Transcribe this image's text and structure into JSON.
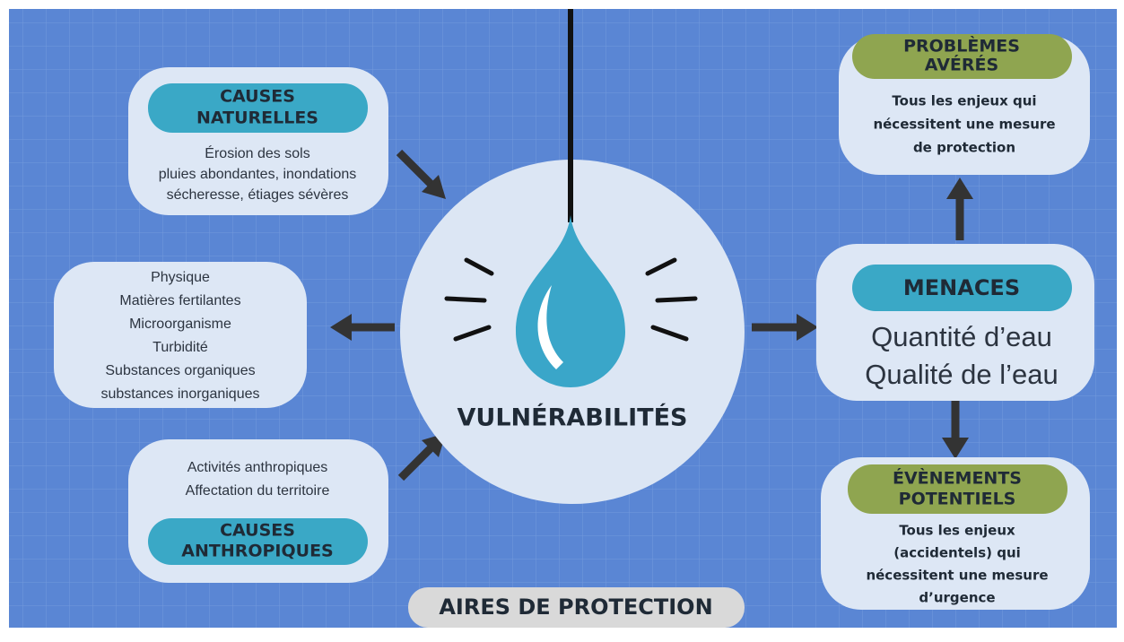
{
  "causes_naturelles": {
    "title": [
      "CAUSES",
      "NATURELLES"
    ],
    "lines": [
      "Érosion des sols",
      "pluies abondantes, inondations",
      "sécheresse, étiages sévères"
    ]
  },
  "parametres": {
    "lines": [
      "Physique",
      "Matières fertilantes",
      "Microorganisme",
      "Turbidité",
      "Substances organiques",
      "substances inorganiques"
    ]
  },
  "causes_anthropiques": {
    "title": [
      "CAUSES",
      "ANTHROPIQUES"
    ],
    "lines": [
      "Activités anthropiques",
      "Affectation du territoire"
    ]
  },
  "center": {
    "label": "VULNÉRABILITÉS"
  },
  "problemes": {
    "title": [
      "PROBLÈMES",
      "AVÉRÉS"
    ],
    "lines": [
      "Tous les enjeux qui",
      "nécessitent une mesure",
      "de protection"
    ]
  },
  "menaces": {
    "title": "MENACES",
    "lines": [
      "Quantité d’eau",
      "Qualité de l’eau"
    ]
  },
  "evenements": {
    "title": [
      "ÉVÈNEMENTS",
      "POTENTIELS"
    ],
    "lines": [
      "Tous les enjeux",
      "(accidentels) qui",
      "nécessitent une mesure",
      "d’urgence"
    ]
  },
  "footer": {
    "label": "AIRES DE PROTECTION"
  }
}
